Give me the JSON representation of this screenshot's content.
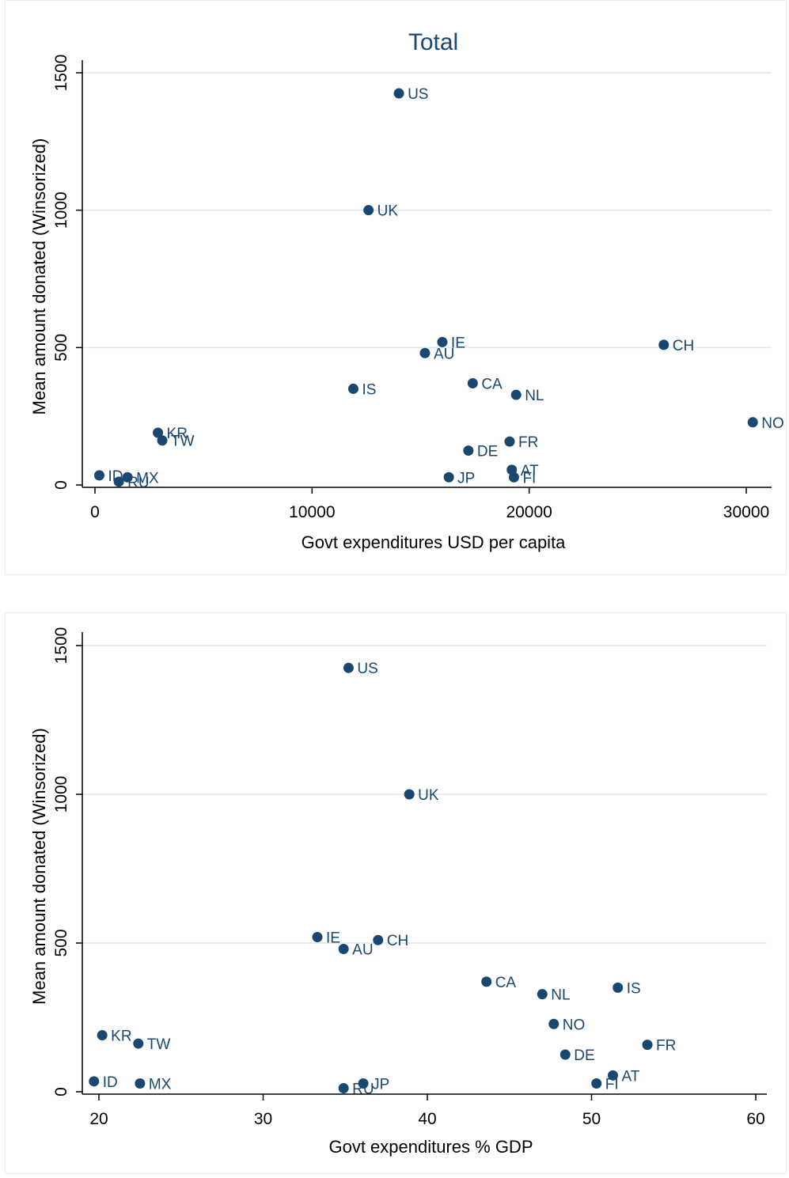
{
  "chart_data": [
    {
      "type": "scatter",
      "title": "Total",
      "xlabel": "Govt expenditures USD per capita",
      "ylabel": "Mean amount donated (Winsorized)",
      "xlim": [
        0,
        31000
      ],
      "ylim": [
        0,
        1500
      ],
      "xticks": [
        0,
        10000,
        20000,
        30000
      ],
      "yticks": [
        0,
        500,
        1000,
        1500
      ],
      "grid": true,
      "color": "#1a476f",
      "points": [
        {
          "label": "US",
          "x": 14000,
          "y": 1425
        },
        {
          "label": "UK",
          "x": 12600,
          "y": 1000
        },
        {
          "label": "IE",
          "x": 16000,
          "y": 520
        },
        {
          "label": "AU",
          "x": 15200,
          "y": 480
        },
        {
          "label": "CH",
          "x": 26200,
          "y": 510
        },
        {
          "label": "IS",
          "x": 11900,
          "y": 350
        },
        {
          "label": "CA",
          "x": 17400,
          "y": 370
        },
        {
          "label": "NL",
          "x": 19400,
          "y": 328
        },
        {
          "label": "NO",
          "x": 30300,
          "y": 228
        },
        {
          "label": "KR",
          "x": 2900,
          "y": 190
        },
        {
          "label": "TW",
          "x": 3100,
          "y": 162
        },
        {
          "label": "FR",
          "x": 19100,
          "y": 158
        },
        {
          "label": "DE",
          "x": 17200,
          "y": 125
        },
        {
          "label": "ID",
          "x": 200,
          "y": 35
        },
        {
          "label": "MX",
          "x": 1500,
          "y": 28
        },
        {
          "label": "RU",
          "x": 1100,
          "y": 12
        },
        {
          "label": "JP",
          "x": 16300,
          "y": 28
        },
        {
          "label": "AT",
          "x": 19200,
          "y": 55
        },
        {
          "label": "FI",
          "x": 19300,
          "y": 28
        }
      ]
    },
    {
      "type": "scatter",
      "title": "",
      "xlabel": "Govt expenditures % GDP",
      "ylabel": "Mean amount donated (Winsorized)",
      "xlim": [
        19,
        61
      ],
      "ylim": [
        0,
        1500
      ],
      "xticks": [
        20,
        30,
        40,
        50,
        60
      ],
      "yticks": [
        0,
        500,
        1000,
        1500
      ],
      "grid": true,
      "color": "#1a476f",
      "points": [
        {
          "label": "US",
          "x": 35.2,
          "y": 1425
        },
        {
          "label": "UK",
          "x": 38.9,
          "y": 1000
        },
        {
          "label": "IE",
          "x": 33.3,
          "y": 520
        },
        {
          "label": "AU",
          "x": 34.9,
          "y": 480
        },
        {
          "label": "CH",
          "x": 37.0,
          "y": 510
        },
        {
          "label": "CA",
          "x": 43.6,
          "y": 370
        },
        {
          "label": "NL",
          "x": 47.0,
          "y": 328
        },
        {
          "label": "IS",
          "x": 51.6,
          "y": 350
        },
        {
          "label": "NO",
          "x": 47.7,
          "y": 228
        },
        {
          "label": "FR",
          "x": 53.4,
          "y": 158
        },
        {
          "label": "DE",
          "x": 48.4,
          "y": 125
        },
        {
          "label": "KR",
          "x": 20.2,
          "y": 190
        },
        {
          "label": "TW",
          "x": 22.4,
          "y": 162
        },
        {
          "label": "ID",
          "x": 19.7,
          "y": 35
        },
        {
          "label": "MX",
          "x": 22.5,
          "y": 28
        },
        {
          "label": "RU",
          "x": 34.9,
          "y": 12
        },
        {
          "label": "JP",
          "x": 36.1,
          "y": 28
        },
        {
          "label": "AT",
          "x": 51.3,
          "y": 55
        },
        {
          "label": "FI",
          "x": 50.3,
          "y": 28
        }
      ]
    }
  ]
}
